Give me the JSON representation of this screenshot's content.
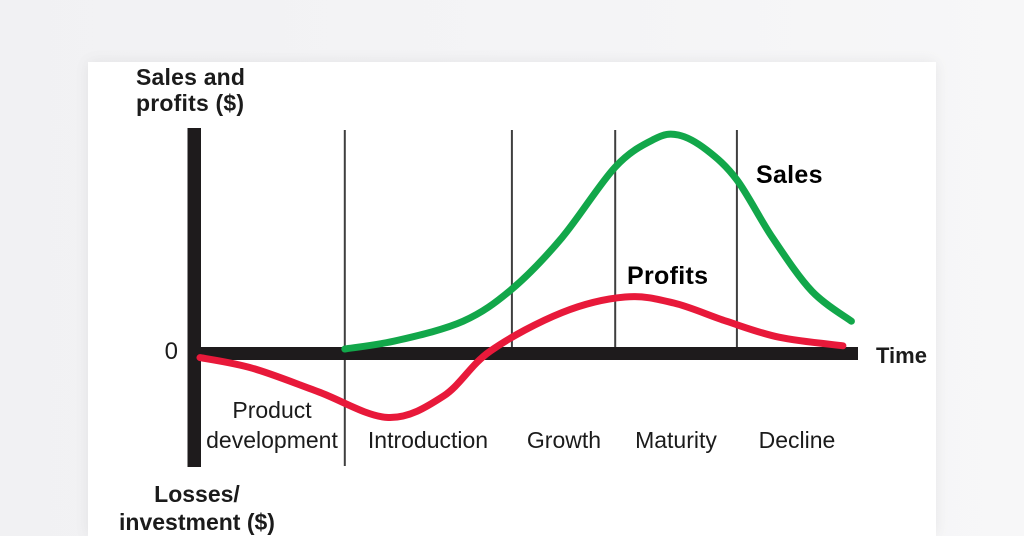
{
  "page": {
    "background": "#f2f2f4",
    "card_background": "#ffffff"
  },
  "colors": {
    "sales": "#12a74a",
    "profits": "#e8193a",
    "axis": "#1e1b1c",
    "divider": "#3f3f3f",
    "text": "#1b1b1b"
  },
  "labels": {
    "y_axis_top_line1": "Sales and",
    "y_axis_top_line2": "profits ($)",
    "y_axis_bottom_line1": "Losses/",
    "y_axis_bottom_line2": "investment ($)"
  },
  "chart_data": {
    "type": "line",
    "x_axis_label": "Time",
    "y_axis_label_positive": "Sales and profits ($)",
    "y_axis_label_negative": "Losses/investment ($)",
    "origin_tick_label": "0",
    "x_range": [
      0,
      1
    ],
    "ylim": [
      -0.45,
      1.3
    ],
    "grid": "vertical phase dividers only",
    "phases": [
      "Product development",
      "Introduction",
      "Growth",
      "Maturity",
      "Decline"
    ],
    "phase_boundaries": [
      0.22,
      0.474,
      0.631,
      0.816
    ],
    "series": [
      {
        "name": "Sales",
        "color": "#12a74a",
        "x": [
          0.22,
          0.3,
          0.4,
          0.474,
          0.55,
          0.631,
          0.69,
          0.727,
          0.77,
          0.816,
          0.87,
          0.93,
          0.99
        ],
        "y": [
          0.0,
          0.04,
          0.13,
          0.28,
          0.52,
          0.85,
          0.98,
          1.0,
          0.93,
          0.79,
          0.52,
          0.27,
          0.13
        ]
      },
      {
        "name": "Profits",
        "color": "#e8193a",
        "x": [
          0.0,
          0.08,
          0.18,
          0.286,
          0.37,
          0.441,
          0.55,
          0.646,
          0.72,
          0.8,
          0.88,
          0.977
        ],
        "y": [
          -0.04,
          -0.09,
          -0.2,
          -0.32,
          -0.22,
          -0.01,
          0.17,
          0.243,
          0.215,
          0.13,
          0.055,
          0.015
        ]
      }
    ]
  }
}
